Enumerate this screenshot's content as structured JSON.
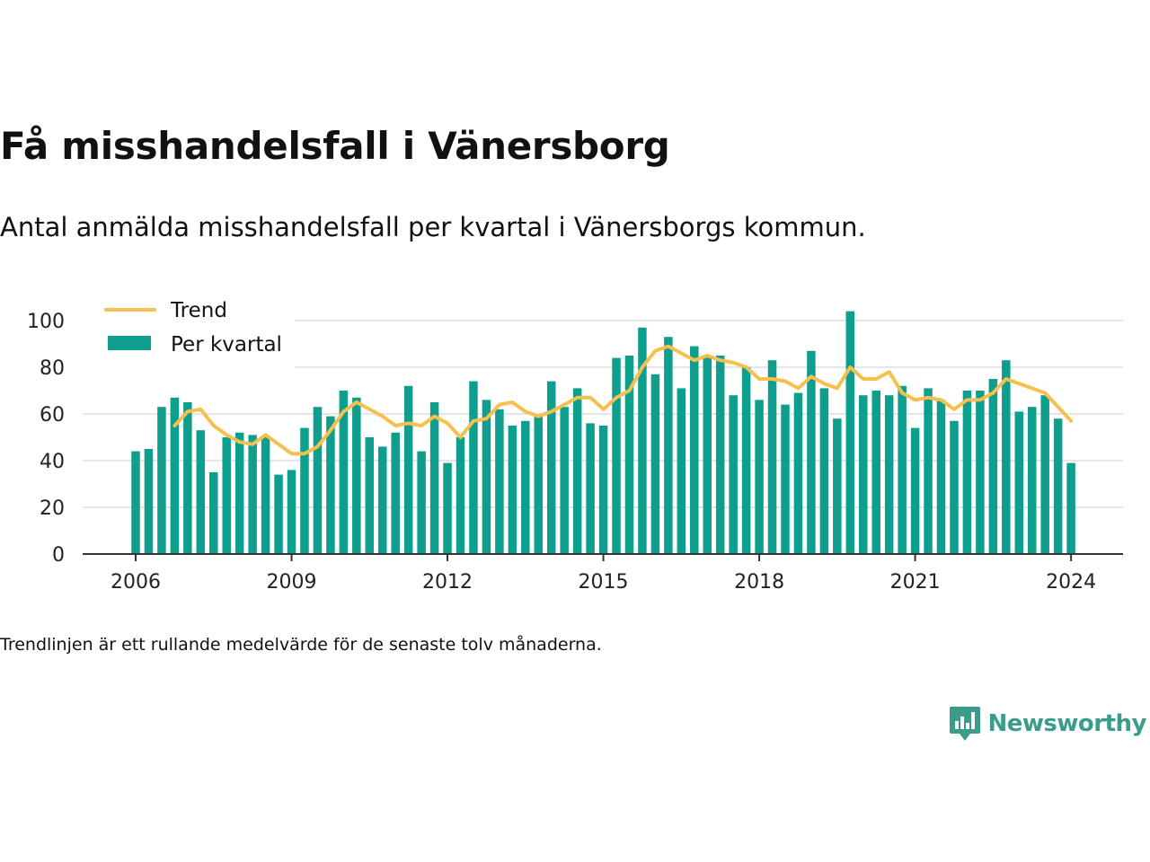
{
  "header": {
    "title": "Få misshandelsfall i Vänersborg",
    "subtitle": "Antal anmälda misshandelsfall per kvartal i Vänersborgs kommun."
  },
  "footnote": "Trendlinjen är ett rullande medelvärde för de senaste tolv månaderna.",
  "brand": {
    "name": "Newsworthy",
    "icon": "newsworthy-logo-icon",
    "color": "#3a9d8c"
  },
  "chart_data": {
    "type": "bar",
    "title": "Få misshandelsfall i Vänersborg",
    "xlabel": "",
    "ylabel": "",
    "ylim": [
      0,
      100
    ],
    "yticks": [
      0,
      20,
      40,
      60,
      80,
      100
    ],
    "xticks": [
      "2006",
      "2009",
      "2012",
      "2015",
      "2018",
      "2021",
      "2024"
    ],
    "grid": true,
    "legend_position": "top-left",
    "colors": {
      "bars": "#0e9e8e",
      "trend": "#f6c04e",
      "grid": "#dddddd",
      "axis": "#333333"
    },
    "start": {
      "year": 2006,
      "quarter": 1
    },
    "series": [
      {
        "name": "Per kvartal",
        "type": "bar",
        "values": [
          44,
          45,
          63,
          67,
          65,
          53,
          35,
          50,
          52,
          51,
          50,
          34,
          36,
          54,
          63,
          59,
          70,
          67,
          50,
          46,
          52,
          72,
          44,
          65,
          39,
          50,
          74,
          66,
          62,
          55,
          57,
          59,
          74,
          63,
          71,
          56,
          55,
          84,
          85,
          97,
          77,
          93,
          71,
          89,
          85,
          85,
          68,
          80,
          66,
          83,
          64,
          69,
          87,
          71,
          58,
          104,
          68,
          70,
          68,
          72,
          54,
          71,
          66,
          57,
          70,
          70,
          75,
          83,
          61,
          63,
          68,
          58,
          39
        ]
      },
      {
        "name": "Trend",
        "type": "line",
        "values": [
          null,
          null,
          null,
          55,
          61,
          62,
          55,
          51,
          48,
          47,
          51,
          47,
          43,
          43,
          46,
          53,
          61,
          65,
          62,
          59,
          55,
          56,
          55,
          59,
          56,
          50,
          57,
          58,
          64,
          65,
          61,
          59,
          61,
          64,
          67,
          67,
          62,
          67,
          70,
          80,
          87,
          89,
          86,
          83,
          85,
          83,
          82,
          80,
          75,
          75,
          74,
          71,
          76,
          73,
          71,
          80,
          75,
          75,
          78,
          69,
          66,
          67,
          66,
          62,
          66,
          66,
          69,
          75,
          73,
          71,
          69,
          63,
          57
        ]
      }
    ]
  }
}
